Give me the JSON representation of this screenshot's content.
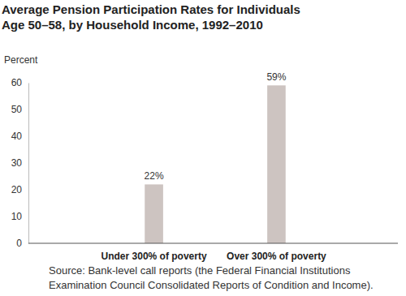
{
  "chart_data": {
    "type": "bar",
    "title": "Average Pension Participation Rates for Individuals Age 50–58, by Household Income, 1992–2010",
    "y_label": "Percent",
    "categories": [
      "Under 300% of poverty",
      "Over 300% of poverty"
    ],
    "values": [
      22,
      59
    ],
    "value_labels": [
      "22%",
      "59%"
    ],
    "data_labels": true,
    "color": "#cdc4c1",
    "ylim": [
      0,
      60
    ],
    "yticks": [
      0,
      10,
      20,
      30,
      40,
      50,
      60
    ],
    "grid": false,
    "source": "Source: Bank-level call reports (the Federal Financial Institutions Examination Council Consolidated Reports of Condition and Income)."
  }
}
